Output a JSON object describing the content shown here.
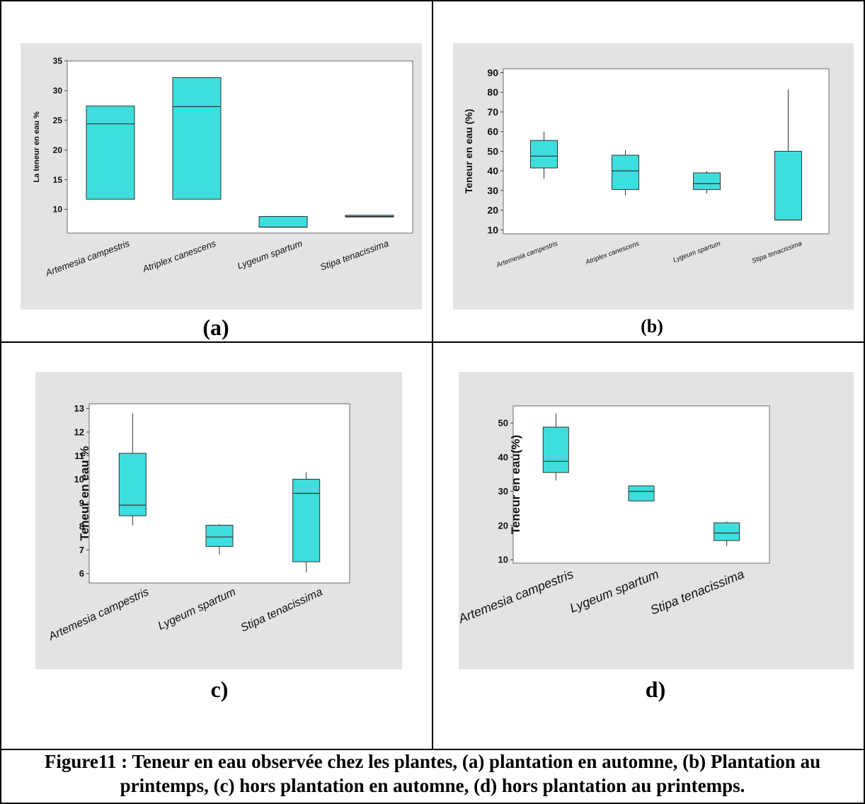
{
  "caption": "Figure11 : Teneur en eau observée chez les plantes, (a) plantation en automne, (b) Plantation au printemps, (c) hors plantation en automne, (d) hors plantation au printemps.",
  "colors": {
    "box_fill": "#3fdede",
    "panel_bg": "#e3e3e3",
    "plot_bg": "#ffffff"
  },
  "chart_data": [
    {
      "panel_label": "(a)",
      "type": "box",
      "ylabel": "La teneur en eau %",
      "ylim": [
        6,
        35
      ],
      "yticks": [
        10,
        15,
        20,
        25,
        30,
        35
      ],
      "categories": [
        "Artemesia campestris",
        "Atriplex canescens",
        "Lygeum spartum",
        "Stipa tenacissima"
      ],
      "boxes": [
        {
          "q1": 11.7,
          "median": 24.4,
          "q3": 27.4,
          "min": 11.7,
          "max": 27.4
        },
        {
          "q1": 11.7,
          "median": 27.3,
          "q3": 32.2,
          "min": 11.7,
          "max": 32.2
        },
        {
          "q1": 7.0,
          "median": 7.0,
          "q3": 8.8,
          "min": 7.0,
          "max": 8.8
        },
        {
          "q1": 8.7,
          "median": 8.8,
          "q3": 9.0,
          "min": 8.7,
          "max": 9.0
        }
      ]
    },
    {
      "panel_label": "(b)",
      "type": "box",
      "ylabel": "Teneur en eau (%)",
      "ylim": [
        8,
        92
      ],
      "yticks": [
        10,
        20,
        30,
        40,
        50,
        60,
        70,
        80,
        90
      ],
      "categories": [
        "Artemesia campestris",
        "Atriplex canescens",
        "Lygeum spartum",
        "Stipa tenacissima"
      ],
      "boxes": [
        {
          "q1": 41.5,
          "median": 47.5,
          "q3": 55.5,
          "min": 36,
          "max": 60
        },
        {
          "q1": 30.5,
          "median": 40,
          "q3": 48,
          "min": 27.5,
          "max": 50.5
        },
        {
          "q1": 30.5,
          "median": 33.5,
          "q3": 39,
          "min": 28.5,
          "max": 40
        },
        {
          "q1": 15,
          "median": 15,
          "q3": 50,
          "min": 15,
          "max": 81.5
        }
      ]
    },
    {
      "panel_label": "c)",
      "type": "box",
      "ylabel": "Teneur en eau %",
      "ylim": [
        5.6,
        13.2
      ],
      "yticks": [
        6,
        7,
        8,
        9,
        10,
        11,
        12,
        13
      ],
      "categories": [
        "Artemesia campestris",
        "Lygeum spartum",
        "Stipa tenacissima"
      ],
      "boxes": [
        {
          "q1": 8.45,
          "median": 8.9,
          "q3": 11.1,
          "min": 8.05,
          "max": 12.8
        },
        {
          "q1": 7.15,
          "median": 7.55,
          "q3": 8.05,
          "min": 6.8,
          "max": 8.1
        },
        {
          "q1": 6.5,
          "median": 9.4,
          "q3": 10.0,
          "min": 6.05,
          "max": 10.3
        }
      ]
    },
    {
      "panel_label": "d)",
      "type": "box",
      "ylabel": "Teneur en eau(%)",
      "ylim": [
        9,
        55
      ],
      "yticks": [
        10,
        20,
        30,
        40,
        50
      ],
      "categories": [
        "Artemesia campestris",
        "Lygeum spartum",
        "Stipa tenacissima"
      ],
      "boxes": [
        {
          "q1": 35.5,
          "median": 38.8,
          "q3": 48.8,
          "min": 33.2,
          "max": 52.8
        },
        {
          "q1": 27.2,
          "median": 30.0,
          "q3": 31.6,
          "min": 27.2,
          "max": 31.6
        },
        {
          "q1": 15.6,
          "median": 17.8,
          "q3": 20.8,
          "min": 14.0,
          "max": 21.2
        }
      ]
    }
  ]
}
